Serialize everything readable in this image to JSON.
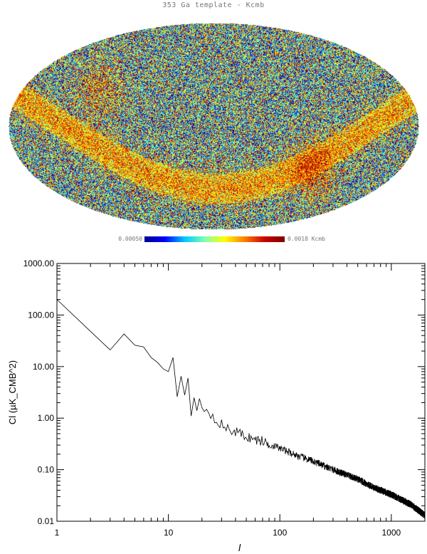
{
  "map": {
    "title": "353 Ga template - Kcmb",
    "colorbar_min": "0.00050",
    "colorbar_max": "0.0018 Kcmb",
    "palette": [
      "#00008f",
      "#0000ff",
      "#00c8ff",
      "#7fffb0",
      "#ffff00",
      "#ff7f00",
      "#cc0000",
      "#800000"
    ]
  },
  "chart_data": {
    "type": "line",
    "title": "",
    "xlabel": "l",
    "ylabel": "Cl (µK_CMB^2)",
    "xscale": "log",
    "yscale": "log",
    "xlim": [
      1,
      2000
    ],
    "ylim": [
      0.01,
      1000
    ],
    "x_ticks": [
      "1",
      "10",
      "100",
      "1000"
    ],
    "y_ticks": [
      "1000.00",
      "100.00",
      "10.00",
      "1.00",
      "0.10",
      "0.01"
    ],
    "anchor_points": {
      "x": [
        1,
        3,
        4,
        5,
        6,
        7,
        8,
        9,
        10,
        11,
        12,
        13,
        14,
        15,
        16,
        17,
        18,
        19,
        20,
        22,
        25,
        30,
        35,
        40,
        50,
        60,
        70,
        80,
        100,
        150,
        200,
        300,
        500,
        700,
        1000,
        1500,
        2000
      ],
      "y": [
        200,
        21,
        43,
        26,
        24,
        15,
        12,
        9,
        8,
        15,
        2.6,
        6.5,
        2.8,
        6.0,
        1.1,
        2.5,
        1.4,
        2.4,
        1.6,
        1.5,
        1.1,
        0.75,
        0.58,
        0.55,
        0.44,
        0.38,
        0.36,
        0.31,
        0.26,
        0.18,
        0.145,
        0.1,
        0.065,
        0.045,
        0.033,
        0.021,
        0.013
      ]
    },
    "series_color": "#000000"
  }
}
